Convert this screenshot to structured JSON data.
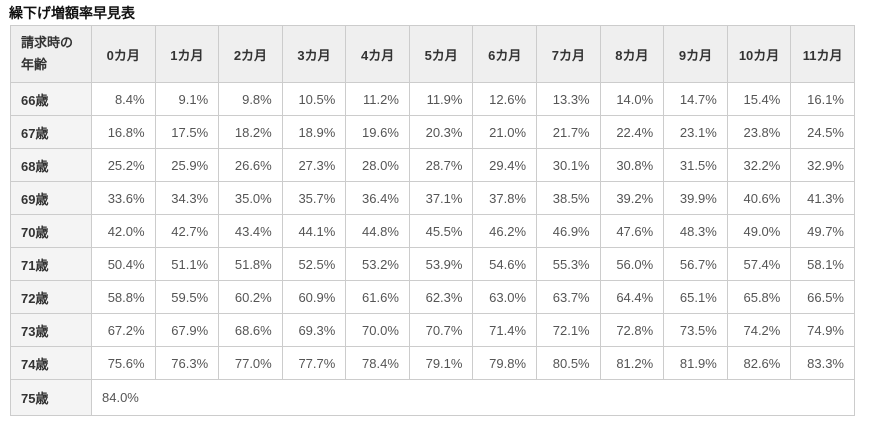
{
  "page": {
    "title": "繰下げ増額率早見表"
  },
  "colors": {
    "header_bg": "#efefef",
    "row_header_bg": "#f4f4f4",
    "border": "#cccccc",
    "header_text": "#333333",
    "cell_text": "#555555",
    "title_text": "#111111",
    "page_bg": "#ffffff"
  },
  "table": {
    "corner_header_lines": [
      "請求時の",
      "年齢"
    ],
    "month_headers": [
      "0カ月",
      "1カ月",
      "2カ月",
      "3カ月",
      "4カ月",
      "5カ月",
      "6カ月",
      "7カ月",
      "8カ月",
      "9カ月",
      "10カ月",
      "11カ月"
    ],
    "rows": [
      {
        "age": "66歳",
        "values": [
          "8.4%",
          "9.1%",
          "9.8%",
          "10.5%",
          "11.2%",
          "11.9%",
          "12.6%",
          "13.3%",
          "14.0%",
          "14.7%",
          "15.4%",
          "16.1%"
        ]
      },
      {
        "age": "67歳",
        "values": [
          "16.8%",
          "17.5%",
          "18.2%",
          "18.9%",
          "19.6%",
          "20.3%",
          "21.0%",
          "21.7%",
          "22.4%",
          "23.1%",
          "23.8%",
          "24.5%"
        ]
      },
      {
        "age": "68歳",
        "values": [
          "25.2%",
          "25.9%",
          "26.6%",
          "27.3%",
          "28.0%",
          "28.7%",
          "29.4%",
          "30.1%",
          "30.8%",
          "31.5%",
          "32.2%",
          "32.9%"
        ]
      },
      {
        "age": "69歳",
        "values": [
          "33.6%",
          "34.3%",
          "35.0%",
          "35.7%",
          "36.4%",
          "37.1%",
          "37.8%",
          "38.5%",
          "39.2%",
          "39.9%",
          "40.6%",
          "41.3%"
        ]
      },
      {
        "age": "70歳",
        "values": [
          "42.0%",
          "42.7%",
          "43.4%",
          "44.1%",
          "44.8%",
          "45.5%",
          "46.2%",
          "46.9%",
          "47.6%",
          "48.3%",
          "49.0%",
          "49.7%"
        ]
      },
      {
        "age": "71歳",
        "values": [
          "50.4%",
          "51.1%",
          "51.8%",
          "52.5%",
          "53.2%",
          "53.9%",
          "54.6%",
          "55.3%",
          "56.0%",
          "56.7%",
          "57.4%",
          "58.1%"
        ]
      },
      {
        "age": "72歳",
        "values": [
          "58.8%",
          "59.5%",
          "60.2%",
          "60.9%",
          "61.6%",
          "62.3%",
          "63.0%",
          "63.7%",
          "64.4%",
          "65.1%",
          "65.8%",
          "66.5%"
        ]
      },
      {
        "age": "73歳",
        "values": [
          "67.2%",
          "67.9%",
          "68.6%",
          "69.3%",
          "70.0%",
          "70.7%",
          "71.4%",
          "72.1%",
          "72.8%",
          "73.5%",
          "74.2%",
          "74.9%"
        ]
      },
      {
        "age": "74歳",
        "values": [
          "75.6%",
          "76.3%",
          "77.0%",
          "77.7%",
          "78.4%",
          "79.1%",
          "79.8%",
          "80.5%",
          "81.2%",
          "81.9%",
          "82.6%",
          "83.3%"
        ]
      },
      {
        "age": "75歳",
        "values": [
          "84.0%"
        ],
        "span_all": true
      }
    ]
  }
}
